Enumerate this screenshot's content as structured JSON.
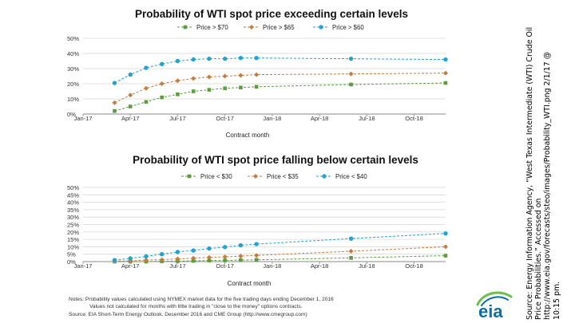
{
  "colors": {
    "green": "#5a9e3c",
    "orange": "#c97a3a",
    "blue": "#1fa3d4",
    "grid": "#d9d9d9",
    "axis": "#8a8a8a",
    "eia_blue": "#0b6ea8"
  },
  "chart_data": [
    {
      "type": "line",
      "title": "Probability of WTI spot price exceeding certain levels",
      "xlabel": "Contract month",
      "ylabel": "",
      "x_ticks": [
        "Jan-17",
        "Apr-17",
        "Jul-17",
        "Oct-17",
        "Jan-18",
        "Apr-18",
        "Jul-18",
        "Oct-18"
      ],
      "y_ticks": [
        "0%",
        "10%",
        "20%",
        "30%",
        "40%",
        "50%"
      ],
      "ylim": [
        0,
        50
      ],
      "legend": "top",
      "grid": true,
      "series": [
        {
          "name": "Price > $70",
          "color_key": "green",
          "points": [
            [
              2,
              2
            ],
            [
              3,
              5
            ],
            [
              4,
              8
            ],
            [
              5,
              11
            ],
            [
              6,
              13
            ],
            [
              7,
              15
            ],
            [
              8,
              16
            ],
            [
              9,
              17
            ],
            [
              10,
              17.5
            ],
            [
              11,
              18
            ],
            [
              17,
              19.5
            ],
            [
              23,
              20.5
            ]
          ]
        },
        {
          "name": "Price > $65",
          "color_key": "orange",
          "points": [
            [
              2,
              7.5
            ],
            [
              3,
              12.5
            ],
            [
              4,
              17
            ],
            [
              5,
              20
            ],
            [
              6,
              22
            ],
            [
              7,
              23.5
            ],
            [
              8,
              24.5
            ],
            [
              9,
              25
            ],
            [
              10,
              25.5
            ],
            [
              11,
              26
            ],
            [
              17,
              26.5
            ],
            [
              23,
              27
            ]
          ]
        },
        {
          "name": "Price > $60",
          "color_key": "blue",
          "points": [
            [
              2,
              20.5
            ],
            [
              3,
              26
            ],
            [
              4,
              30.5
            ],
            [
              5,
              33
            ],
            [
              6,
              35
            ],
            [
              7,
              36
            ],
            [
              8,
              36.5
            ],
            [
              9,
              36.5
            ],
            [
              10,
              37
            ],
            [
              11,
              37
            ],
            [
              17,
              36.5
            ],
            [
              23,
              36
            ]
          ]
        }
      ]
    },
    {
      "type": "line",
      "title": "Probability of WTI spot price falling below certain levels",
      "xlabel": "Contract month",
      "ylabel": "",
      "x_ticks": [
        "Jan-17",
        "Apr-17",
        "Jul-17",
        "Oct-17",
        "Jan-18",
        "Apr-18",
        "Jul-18",
        "Oct-18"
      ],
      "y_ticks": [
        "0%",
        "5%",
        "10%",
        "15%",
        "20%",
        "25%",
        "30%",
        "35%",
        "40%",
        "45%",
        "50%"
      ],
      "ylim": [
        0,
        50
      ],
      "legend": "top",
      "grid": true,
      "series": [
        {
          "name": "Price < $30",
          "color_key": "green",
          "points": [
            [
              2,
              0
            ],
            [
              3,
              0
            ],
            [
              4,
              0
            ],
            [
              5,
              0.2
            ],
            [
              6,
              0.3
            ],
            [
              7,
              0.5
            ],
            [
              8,
              0.7
            ],
            [
              9,
              0.8
            ],
            [
              10,
              1
            ],
            [
              11,
              1.2
            ],
            [
              17,
              2.5
            ],
            [
              23,
              4
            ]
          ]
        },
        {
          "name": "Price < $35",
          "color_key": "orange",
          "points": [
            [
              2,
              0.3
            ],
            [
              3,
              0.5
            ],
            [
              4,
              1
            ],
            [
              5,
              1.3
            ],
            [
              6,
              1.8
            ],
            [
              7,
              2.3
            ],
            [
              8,
              2.8
            ],
            [
              9,
              3.2
            ],
            [
              10,
              3.7
            ],
            [
              11,
              4.2
            ],
            [
              17,
              7
            ],
            [
              23,
              10
            ]
          ]
        },
        {
          "name": "Price < $40",
          "color_key": "blue",
          "points": [
            [
              2,
              1
            ],
            [
              3,
              2.2
            ],
            [
              4,
              3.5
            ],
            [
              5,
              5
            ],
            [
              6,
              6.5
            ],
            [
              7,
              7.5
            ],
            [
              8,
              8.8
            ],
            [
              9,
              9.8
            ],
            [
              10,
              11
            ],
            [
              11,
              11.8
            ],
            [
              17,
              15.5
            ],
            [
              23,
              19
            ]
          ]
        }
      ]
    }
  ],
  "notes": {
    "line1": "Notes: Probability values calculated using NYMEX market data for the five trading days ending December 1, 2016",
    "line2": "Values not calculated for months with little trading in \"close to the money\" options contracts.",
    "line3": "Source: EIA Short-Term Energy Outlook, December 2016 and CME Group (http://www.cmegroup.com)"
  },
  "logo_text": "eia",
  "source_caption": [
    "Source: Energy Information Agency, “West Texas Intermediate (WTI) Crude Oil",
    "Price Probabilities.” Accessed on",
    "http://www.eia.gov/forecasts/steo/images/Probability_WTI.png 2/1/17 @",
    "10:15 pm."
  ]
}
